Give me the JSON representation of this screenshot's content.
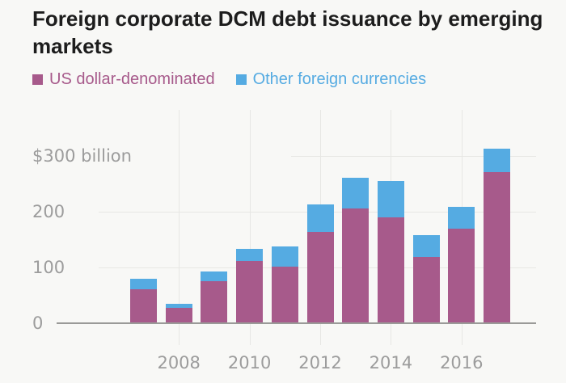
{
  "title": {
    "full": "Foreign corporate DCM debt issuance by emerging markets",
    "line1": "Foreign corporate DCM debt issuance by emerging",
    "line2": "markets"
  },
  "legend": [
    {
      "label": "US dollar-denominated",
      "color": "#a75a8b"
    },
    {
      "label": "Other foreign currencies",
      "color": "#55abe2"
    }
  ],
  "colors": {
    "background": "#f8f8f6",
    "title_text": "#1d1d1d",
    "gridline": "#e7e7e4",
    "axis_line": "#9a9a98",
    "tick_text": "#9c9c9c",
    "usd_bar": "#a75a8b",
    "other_bar": "#55abe2"
  },
  "chart_data": {
    "type": "bar",
    "stacked": true,
    "title": "Foreign corporate DCM debt issuance by emerging markets",
    "xlabel": "",
    "ylabel": "$ billion",
    "ylim": [
      0,
      330
    ],
    "grid": true,
    "legend_position": "top",
    "categories": [
      "2007",
      "2008",
      "2009",
      "2010",
      "2011",
      "2012",
      "2013",
      "2014",
      "2015",
      "2016",
      "2017"
    ],
    "series": [
      {
        "name": "US dollar-denominated",
        "color": "#a75a8b",
        "values": [
          61,
          27,
          75,
          112,
          102,
          164,
          206,
          190,
          118,
          170,
          270
        ]
      },
      {
        "name": "Other foreign currencies",
        "color": "#55abe2",
        "values": [
          18,
          8,
          18,
          21,
          36,
          49,
          55,
          64,
          40,
          38,
          43
        ]
      }
    ],
    "totals": [
      79,
      35,
      93,
      133,
      138,
      213,
      261,
      254,
      158,
      208,
      313
    ],
    "y_ticks": [
      {
        "value": 300,
        "label": "$300 billion"
      },
      {
        "value": 200,
        "label": "200"
      },
      {
        "value": 100,
        "label": "100"
      },
      {
        "value": 0,
        "label": "0"
      }
    ],
    "x_ticks": [
      "2008",
      "2010",
      "2012",
      "2014",
      "2016"
    ]
  }
}
